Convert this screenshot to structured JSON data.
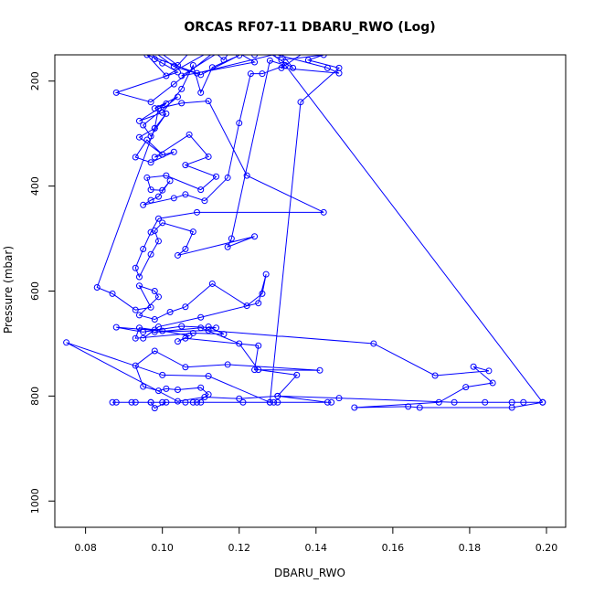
{
  "chart_data": {
    "type": "line",
    "title": "ORCAS RF07-11 DBARU_RWO (Log)",
    "xlabel": "DBARU_RWO",
    "ylabel": "Pressure (mbar)",
    "xlim": [
      0.072,
      0.205
    ],
    "ylim": [
      1050,
      150
    ],
    "y_reversed": true,
    "grid": false,
    "color": "#0000ff",
    "x_ticks": [
      0.08,
      0.1,
      0.12,
      0.14,
      0.16,
      0.18,
      0.2
    ],
    "x_tick_labels": [
      "0.08",
      "0.10",
      "0.12",
      "0.14",
      "0.16",
      "0.18",
      "0.20"
    ],
    "y_ticks": [
      200,
      400,
      600,
      800,
      1000
    ],
    "y_tick_labels": [
      "200",
      "400",
      "600",
      "800",
      "1000"
    ],
    "series": [
      {
        "values": [
          [
            0.098,
            138
          ],
          [
            0.104,
            170
          ],
          [
            0.11,
            122
          ],
          [
            0.116,
            160
          ],
          [
            0.12,
            118
          ],
          [
            0.124,
            150
          ],
          [
            0.128,
            120
          ],
          [
            0.134,
            175
          ],
          [
            0.12,
            110
          ],
          [
            0.112,
            145
          ],
          [
            0.101,
            190
          ],
          [
            0.096,
            150
          ],
          [
            0.109,
            185
          ],
          [
            0.14,
            130
          ],
          [
            0.131,
            175
          ],
          [
            0.146,
            185
          ],
          [
            0.143,
            175
          ],
          [
            0.13,
            150
          ],
          [
            0.119,
            125
          ],
          [
            0.105,
            190
          ],
          [
            0.124,
            164
          ],
          [
            0.116,
            130
          ],
          [
            0.103,
            206
          ],
          [
            0.097,
            240
          ],
          [
            0.088,
            222
          ],
          [
            0.104,
            183
          ],
          [
            0.1,
            166
          ],
          [
            0.098,
            158
          ],
          [
            0.097,
            140
          ],
          [
            0.103,
            172
          ],
          [
            0.11,
            188
          ],
          [
            0.12,
            151
          ],
          [
            0.113,
            174
          ],
          [
            0.11,
            222
          ],
          [
            0.108,
            170
          ],
          [
            0.105,
            215
          ],
          [
            0.1,
            260
          ],
          [
            0.094,
            276
          ],
          [
            0.101,
            243
          ],
          [
            0.098,
            252
          ],
          [
            0.104,
            230
          ],
          [
            0.095,
            284
          ],
          [
            0.097,
            305
          ],
          [
            0.101,
            262
          ],
          [
            0.098,
            290
          ],
          [
            0.094,
            307
          ],
          [
            0.1,
            340
          ],
          [
            0.096,
            312
          ],
          [
            0.093,
            345
          ],
          [
            0.097,
            355
          ],
          [
            0.103,
            335
          ],
          [
            0.098,
            345
          ],
          [
            0.107,
            302
          ],
          [
            0.112,
            344
          ],
          [
            0.106,
            360
          ],
          [
            0.114,
            382
          ],
          [
            0.11,
            407
          ],
          [
            0.101,
            380
          ],
          [
            0.096,
            384
          ],
          [
            0.097,
            407
          ],
          [
            0.1,
            408
          ],
          [
            0.102,
            390
          ],
          [
            0.099,
            420
          ],
          [
            0.097,
            427
          ],
          [
            0.095,
            436
          ],
          [
            0.103,
            423
          ],
          [
            0.106,
            416
          ],
          [
            0.111,
            428
          ],
          [
            0.117,
            384
          ],
          [
            0.12,
            280
          ],
          [
            0.123,
            186
          ],
          [
            0.126,
            186
          ],
          [
            0.132,
            170
          ],
          [
            0.128,
            161
          ],
          [
            0.118,
            500
          ],
          [
            0.117,
            516
          ],
          [
            0.124,
            496
          ],
          [
            0.104,
            532
          ],
          [
            0.106,
            520
          ],
          [
            0.108,
            487
          ],
          [
            0.1,
            470
          ],
          [
            0.098,
            485
          ],
          [
            0.099,
            505
          ],
          [
            0.097,
            530
          ],
          [
            0.094,
            573
          ],
          [
            0.093,
            556
          ],
          [
            0.095,
            520
          ],
          [
            0.097,
            488
          ],
          [
            0.099,
            462
          ],
          [
            0.109,
            450
          ],
          [
            0.142,
            450
          ],
          [
            0.122,
            380
          ],
          [
            0.112,
            238
          ],
          [
            0.105,
            242
          ],
          [
            0.099,
            252
          ],
          [
            0.098,
            290
          ],
          [
            0.083,
            593
          ],
          [
            0.087,
            605
          ],
          [
            0.093,
            636
          ],
          [
            0.097,
            631
          ],
          [
            0.094,
            590
          ],
          [
            0.098,
            600
          ],
          [
            0.099,
            611
          ],
          [
            0.094,
            646
          ],
          [
            0.098,
            654
          ],
          [
            0.102,
            640
          ],
          [
            0.106,
            630
          ],
          [
            0.113,
            586
          ],
          [
            0.122,
            628
          ],
          [
            0.126,
            605
          ],
          [
            0.127,
            568
          ],
          [
            0.125,
            623
          ],
          [
            0.11,
            650
          ],
          [
            0.099,
            668
          ],
          [
            0.095,
            690
          ],
          [
            0.098,
            674
          ],
          [
            0.094,
            670
          ],
          [
            0.093,
            690
          ],
          [
            0.108,
            680
          ],
          [
            0.116,
            682
          ],
          [
            0.112,
            668
          ],
          [
            0.114,
            670
          ],
          [
            0.105,
            667
          ],
          [
            0.095,
            678
          ],
          [
            0.088,
            669
          ],
          [
            0.1,
            676
          ],
          [
            0.107,
            685
          ],
          [
            0.104,
            696
          ],
          [
            0.106,
            690
          ],
          [
            0.125,
            704
          ],
          [
            0.124,
            750
          ],
          [
            0.141,
            751
          ],
          [
            0.117,
            740
          ],
          [
            0.106,
            745
          ],
          [
            0.098,
            714
          ],
          [
            0.093,
            742
          ],
          [
            0.095,
            782
          ],
          [
            0.099,
            790
          ],
          [
            0.101,
            786
          ],
          [
            0.104,
            788
          ],
          [
            0.11,
            784
          ],
          [
            0.112,
            797
          ],
          [
            0.109,
            812
          ],
          [
            0.101,
            812
          ],
          [
            0.098,
            823
          ],
          [
            0.097,
            812
          ],
          [
            0.088,
            812
          ],
          [
            0.087,
            812
          ],
          [
            0.092,
            812
          ],
          [
            0.093,
            812
          ],
          [
            0.097,
            812
          ],
          [
            0.1,
            812
          ],
          [
            0.106,
            812
          ],
          [
            0.108,
            812
          ],
          [
            0.11,
            812
          ],
          [
            0.121,
            812
          ],
          [
            0.128,
            812
          ],
          [
            0.129,
            812
          ],
          [
            0.13,
            812
          ],
          [
            0.144,
            812
          ],
          [
            0.143,
            812
          ],
          [
            0.13,
            800
          ],
          [
            0.146,
            804
          ],
          [
            0.176,
            812
          ],
          [
            0.184,
            812
          ],
          [
            0.191,
            812
          ],
          [
            0.194,
            812
          ],
          [
            0.199,
            812
          ],
          [
            0.191,
            822
          ],
          [
            0.167,
            822
          ],
          [
            0.164,
            820
          ],
          [
            0.15,
            822
          ],
          [
            0.172,
            812
          ],
          [
            0.179,
            783
          ],
          [
            0.186,
            775
          ],
          [
            0.181,
            744
          ],
          [
            0.185,
            752
          ],
          [
            0.171,
            761
          ],
          [
            0.155,
            700
          ],
          [
            0.112,
            675
          ],
          [
            0.098,
            678
          ],
          [
            0.11,
            670
          ],
          [
            0.12,
            700
          ],
          [
            0.125,
            750
          ],
          [
            0.135,
            760
          ],
          [
            0.13,
            800
          ],
          [
            0.12,
            805
          ],
          [
            0.111,
            802
          ],
          [
            0.104,
            810
          ],
          [
            0.075,
            698
          ],
          [
            0.1,
            760
          ],
          [
            0.112,
            762
          ],
          [
            0.128,
            812
          ],
          [
            0.136,
            240
          ],
          [
            0.146,
            175
          ],
          [
            0.138,
            160
          ],
          [
            0.142,
            150
          ],
          [
            0.131,
            160
          ],
          [
            0.199,
            812
          ]
        ]
      }
    ]
  }
}
